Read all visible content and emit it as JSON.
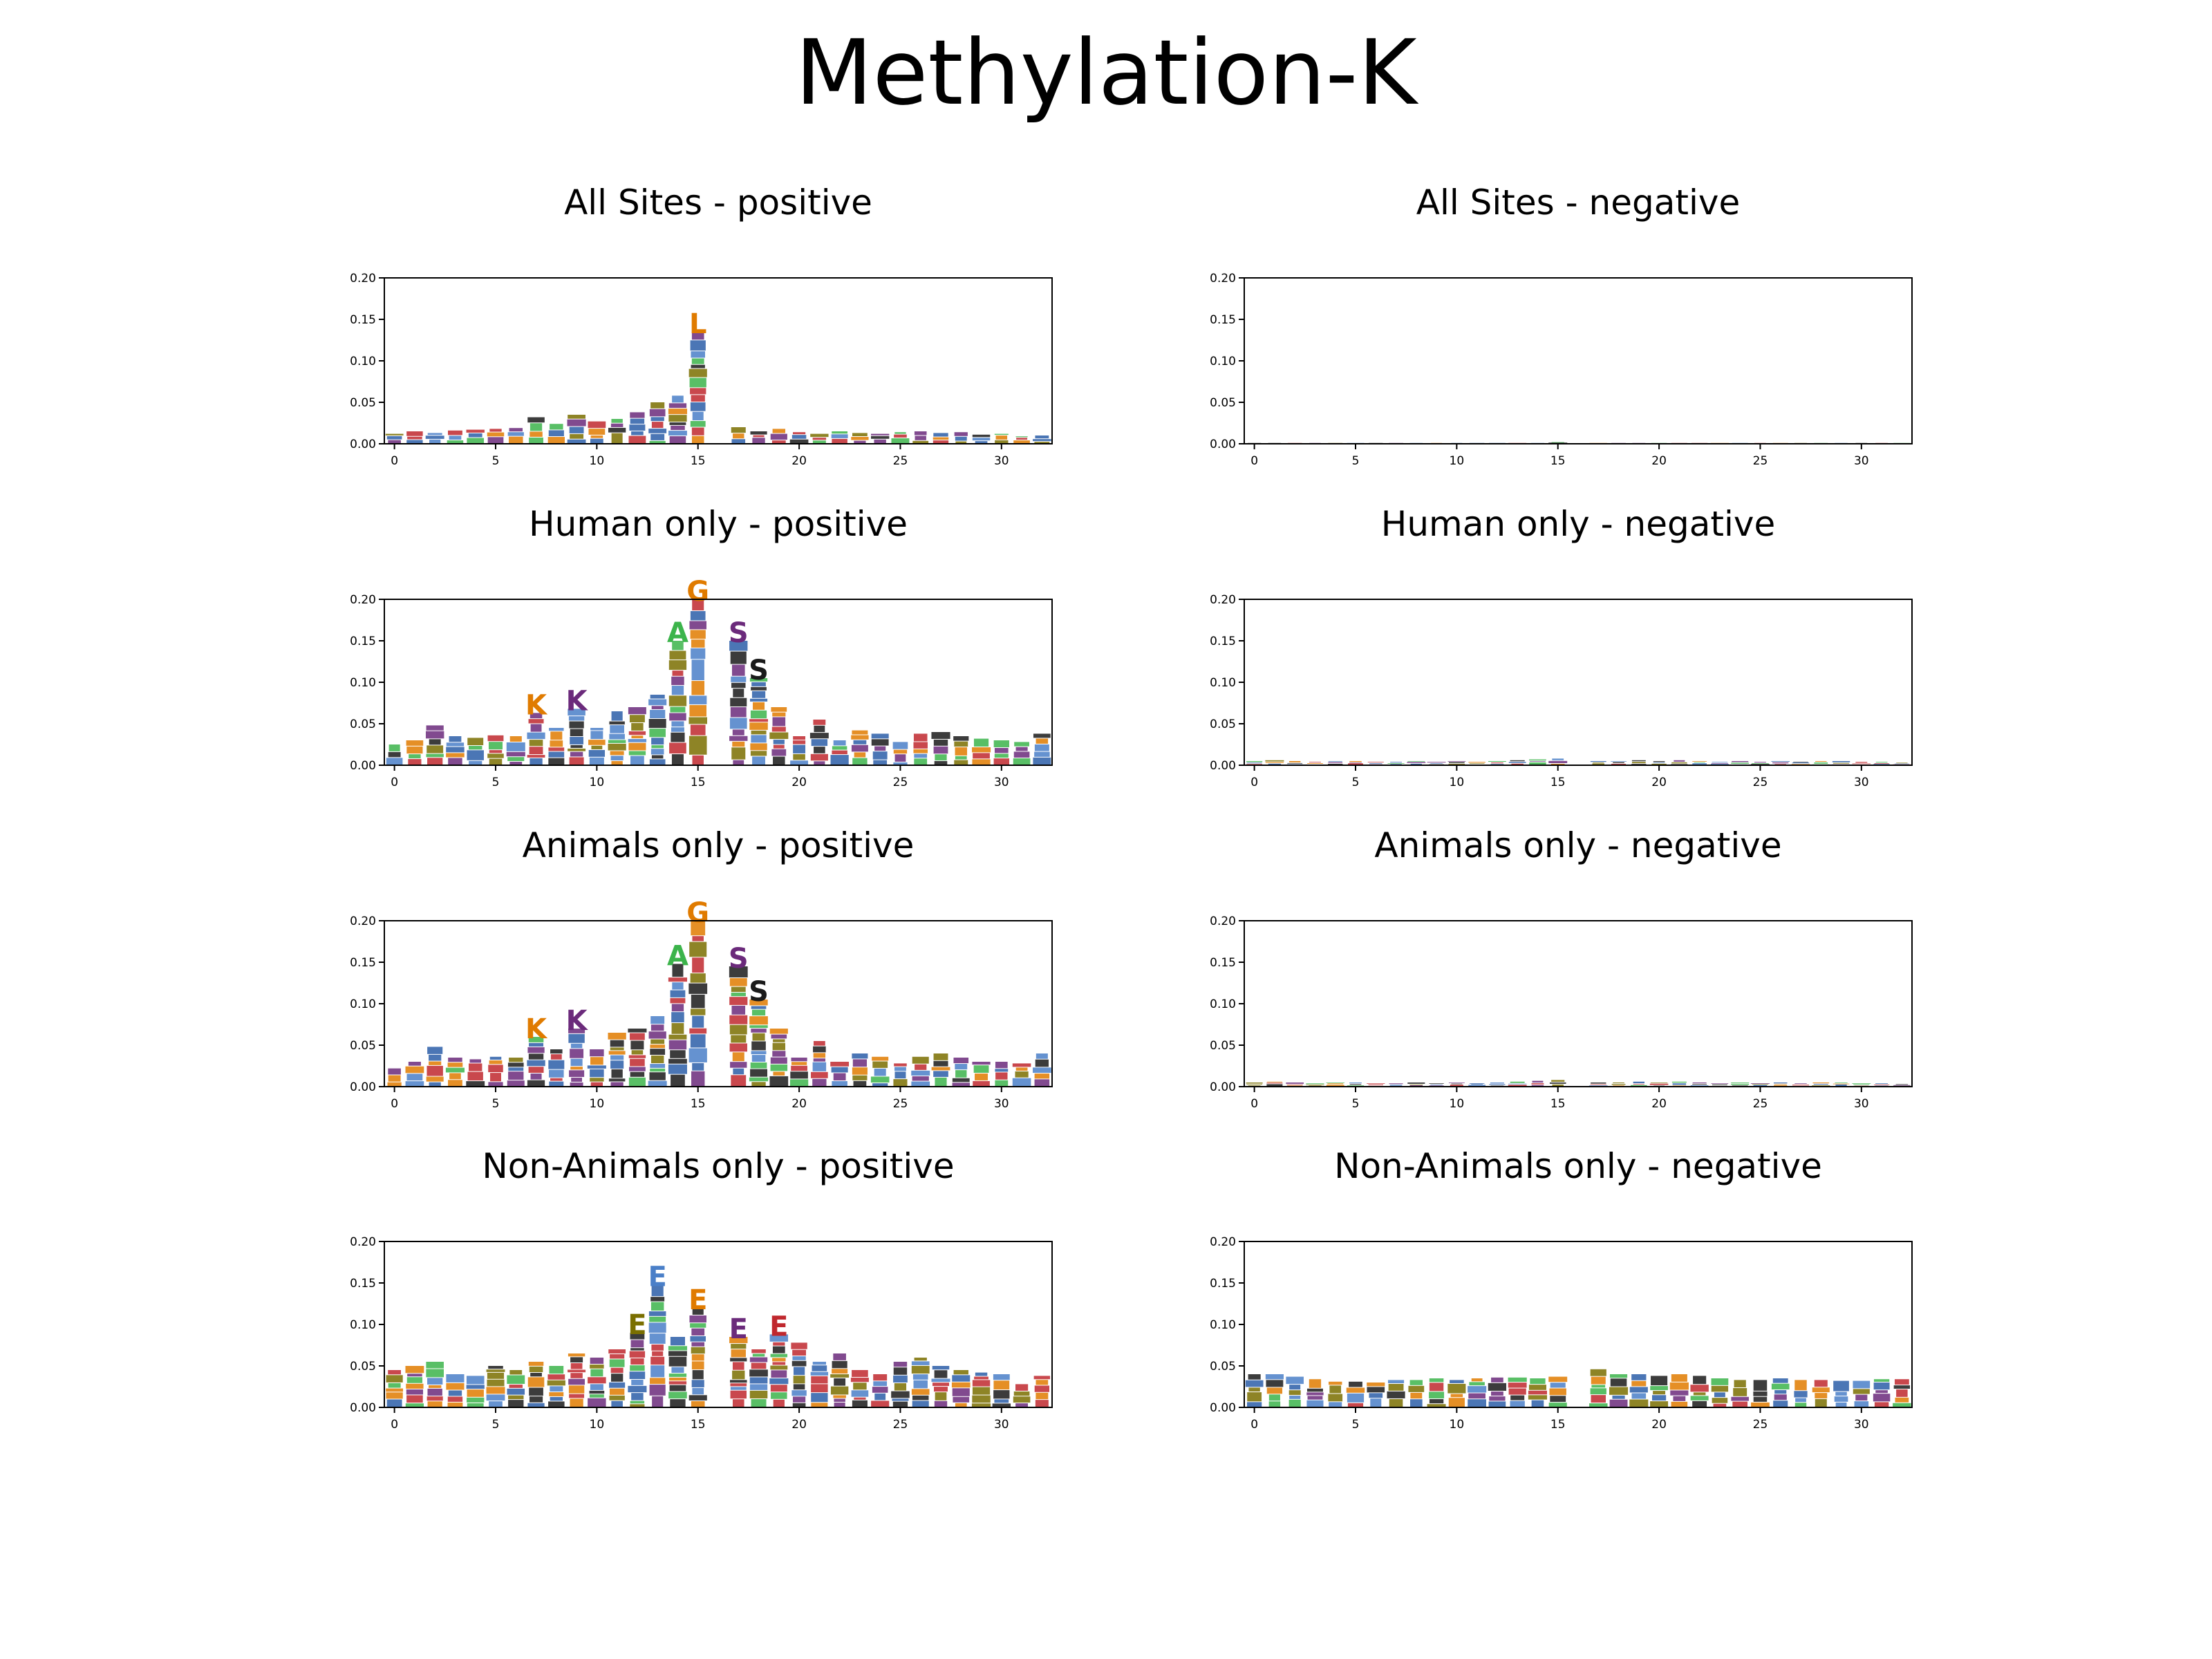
{
  "figure": {
    "title": "Methylation-K"
  },
  "chart_data": [
    {
      "type": "bar",
      "title": "All Sites - positive",
      "ylim": [
        0,
        0.2
      ],
      "xlim": [
        -0.5,
        32.5
      ],
      "yticks": [
        "0.00",
        "0.05",
        "0.10",
        "0.15",
        "0.20"
      ],
      "xticks": [
        "0",
        "5",
        "10",
        "15",
        "20",
        "25",
        "30"
      ],
      "x": [
        0,
        1,
        2,
        3,
        4,
        5,
        6,
        7,
        8,
        9,
        10,
        11,
        12,
        13,
        14,
        15,
        16,
        17,
        18,
        19,
        20,
        21,
        22,
        23,
        24,
        25,
        26,
        27,
        28,
        29,
        30,
        31,
        32
      ],
      "values": [
        0.012,
        0.015,
        0.013,
        0.016,
        0.017,
        0.018,
        0.019,
        0.032,
        0.024,
        0.035,
        0.027,
        0.03,
        0.038,
        0.05,
        0.058,
        0.135,
        0.0,
        0.02,
        0.015,
        0.018,
        0.014,
        0.012,
        0.015,
        0.013,
        0.012,
        0.014,
        0.015,
        0.013,
        0.014,
        0.011,
        0.012,
        0.009,
        0.01
      ],
      "top_letters": [
        "",
        "",
        "",
        "",
        "",
        "",
        "",
        "",
        "",
        "",
        "",
        "",
        "",
        "",
        "",
        "L",
        "",
        "",
        "",
        "",
        "",
        "",
        "",
        "",
        "",
        "",
        "",
        "",
        "",
        "",
        "",
        "",
        ""
      ]
    },
    {
      "type": "bar",
      "title": "All Sites - negative",
      "ylim": [
        0,
        0.2
      ],
      "xlim": [
        -0.5,
        32.5
      ],
      "yticks": [
        "0.00",
        "0.05",
        "0.10",
        "0.15",
        "0.20"
      ],
      "xticks": [
        "0",
        "5",
        "10",
        "15",
        "20",
        "25",
        "30"
      ],
      "x": [
        0,
        1,
        2,
        3,
        4,
        5,
        6,
        7,
        8,
        9,
        10,
        11,
        12,
        13,
        14,
        15,
        16,
        17,
        18,
        19,
        20,
        21,
        22,
        23,
        24,
        25,
        26,
        27,
        28,
        29,
        30,
        31,
        32
      ],
      "values": [
        0.001,
        0.001,
        0.001,
        0.001,
        0.001,
        0.001,
        0.001,
        0.001,
        0.001,
        0.001,
        0.001,
        0.001,
        0.001,
        0.001,
        0.001,
        0.002,
        0.0,
        0.001,
        0.001,
        0.001,
        0.001,
        0.001,
        0.001,
        0.001,
        0.001,
        0.001,
        0.001,
        0.001,
        0.001,
        0.001,
        0.001,
        0.001,
        0.001
      ],
      "top_letters": []
    },
    {
      "type": "bar",
      "title": "Human only - positive",
      "ylim": [
        0,
        0.2
      ],
      "xlim": [
        -0.5,
        32.5
      ],
      "yticks": [
        "0.00",
        "0.05",
        "0.10",
        "0.15",
        "0.20"
      ],
      "xticks": [
        "0",
        "5",
        "10",
        "15",
        "20",
        "25",
        "30"
      ],
      "x": [
        0,
        1,
        2,
        3,
        4,
        5,
        6,
        7,
        8,
        9,
        10,
        11,
        12,
        13,
        14,
        15,
        16,
        17,
        18,
        19,
        20,
        21,
        22,
        23,
        24,
        25,
        26,
        27,
        28,
        29,
        30,
        31,
        32
      ],
      "values": [
        0.025,
        0.03,
        0.048,
        0.035,
        0.033,
        0.036,
        0.035,
        0.063,
        0.045,
        0.068,
        0.045,
        0.065,
        0.07,
        0.085,
        0.15,
        0.2,
        0.0,
        0.15,
        0.105,
        0.07,
        0.035,
        0.055,
        0.03,
        0.042,
        0.038,
        0.028,
        0.038,
        0.04,
        0.035,
        0.032,
        0.03,
        0.028,
        0.038
      ],
      "top_letters": [
        "",
        "",
        "",
        "",
        "",
        "",
        "",
        "K",
        "",
        "K",
        "",
        "",
        "",
        "",
        "A",
        "G",
        "",
        "S",
        "S",
        "",
        "",
        "",
        "",
        "",
        "",
        "",
        "",
        "",
        "",
        "",
        "",
        "",
        ""
      ]
    },
    {
      "type": "bar",
      "title": "Human only - negative",
      "ylim": [
        0,
        0.2
      ],
      "xlim": [
        -0.5,
        32.5
      ],
      "yticks": [
        "0.00",
        "0.05",
        "0.10",
        "0.15",
        "0.20"
      ],
      "xticks": [
        "0",
        "5",
        "10",
        "15",
        "20",
        "25",
        "30"
      ],
      "x": [
        0,
        1,
        2,
        3,
        4,
        5,
        6,
        7,
        8,
        9,
        10,
        11,
        12,
        13,
        14,
        15,
        16,
        17,
        18,
        19,
        20,
        21,
        22,
        23,
        24,
        25,
        26,
        27,
        28,
        29,
        30,
        31,
        32
      ],
      "values": [
        0.005,
        0.006,
        0.005,
        0.004,
        0.005,
        0.005,
        0.004,
        0.004,
        0.005,
        0.004,
        0.005,
        0.004,
        0.005,
        0.006,
        0.007,
        0.008,
        0.0,
        0.005,
        0.005,
        0.006,
        0.005,
        0.006,
        0.005,
        0.004,
        0.005,
        0.004,
        0.005,
        0.004,
        0.005,
        0.005,
        0.004,
        0.004,
        0.003
      ],
      "top_letters": []
    },
    {
      "type": "bar",
      "title": "Animals only - positive",
      "ylim": [
        0,
        0.2
      ],
      "xlim": [
        -0.5,
        32.5
      ],
      "yticks": [
        "0.00",
        "0.05",
        "0.10",
        "0.15",
        "0.20"
      ],
      "xticks": [
        "0",
        "5",
        "10",
        "15",
        "20",
        "25",
        "30"
      ],
      "x": [
        0,
        1,
        2,
        3,
        4,
        5,
        6,
        7,
        8,
        9,
        10,
        11,
        12,
        13,
        14,
        15,
        16,
        17,
        18,
        19,
        20,
        21,
        22,
        23,
        24,
        25,
        26,
        27,
        28,
        29,
        30,
        31,
        32
      ],
      "values": [
        0.022,
        0.03,
        0.048,
        0.035,
        0.033,
        0.036,
        0.035,
        0.06,
        0.045,
        0.07,
        0.045,
        0.065,
        0.07,
        0.085,
        0.148,
        0.2,
        0.0,
        0.145,
        0.105,
        0.07,
        0.035,
        0.055,
        0.03,
        0.04,
        0.036,
        0.028,
        0.036,
        0.04,
        0.035,
        0.03,
        0.03,
        0.028,
        0.04
      ],
      "top_letters": [
        "",
        "",
        "",
        "",
        "",
        "",
        "",
        "K",
        "",
        "K",
        "",
        "",
        "",
        "",
        "A",
        "G",
        "",
        "S",
        "S",
        "",
        "",
        "",
        "",
        "",
        "",
        "",
        "",
        "",
        "",
        "",
        "",
        "",
        ""
      ]
    },
    {
      "type": "bar",
      "title": "Animals only - negative",
      "ylim": [
        0,
        0.2
      ],
      "xlim": [
        -0.5,
        32.5
      ],
      "yticks": [
        "0.00",
        "0.05",
        "0.10",
        "0.15",
        "0.20"
      ],
      "xticks": [
        "0",
        "5",
        "10",
        "15",
        "20",
        "25",
        "30"
      ],
      "x": [
        0,
        1,
        2,
        3,
        4,
        5,
        6,
        7,
        8,
        9,
        10,
        11,
        12,
        13,
        14,
        15,
        16,
        17,
        18,
        19,
        20,
        21,
        22,
        23,
        24,
        25,
        26,
        27,
        28,
        29,
        30,
        31,
        32
      ],
      "values": [
        0.005,
        0.006,
        0.005,
        0.004,
        0.005,
        0.005,
        0.004,
        0.004,
        0.005,
        0.004,
        0.005,
        0.004,
        0.005,
        0.006,
        0.007,
        0.008,
        0.0,
        0.005,
        0.005,
        0.006,
        0.005,
        0.006,
        0.005,
        0.004,
        0.005,
        0.004,
        0.005,
        0.004,
        0.005,
        0.005,
        0.004,
        0.004,
        0.003
      ],
      "top_letters": []
    },
    {
      "type": "bar",
      "title": "Non-Animals only - positive",
      "ylim": [
        0,
        0.2
      ],
      "xlim": [
        -0.5,
        32.5
      ],
      "yticks": [
        "0.00",
        "0.05",
        "0.10",
        "0.15",
        "0.20"
      ],
      "xticks": [
        "0",
        "5",
        "10",
        "15",
        "20",
        "25",
        "30"
      ],
      "x": [
        0,
        1,
        2,
        3,
        4,
        5,
        6,
        7,
        8,
        9,
        10,
        11,
        12,
        13,
        14,
        15,
        16,
        17,
        18,
        19,
        20,
        21,
        22,
        23,
        24,
        25,
        26,
        27,
        28,
        29,
        30,
        31,
        32
      ],
      "values": [
        0.045,
        0.05,
        0.055,
        0.04,
        0.038,
        0.05,
        0.045,
        0.055,
        0.05,
        0.065,
        0.06,
        0.07,
        0.09,
        0.148,
        0.085,
        0.12,
        0.0,
        0.085,
        0.07,
        0.088,
        0.078,
        0.055,
        0.065,
        0.045,
        0.04,
        0.055,
        0.06,
        0.05,
        0.045,
        0.042,
        0.04,
        0.028,
        0.038
      ],
      "top_letters": [
        "",
        "",
        "",
        "",
        "",
        "",
        "",
        "",
        "",
        "",
        "",
        "",
        "E",
        "E",
        "",
        "E",
        "",
        "E",
        "",
        "E",
        "",
        "",
        "",
        "",
        "",
        "",
        "",
        "",
        "",
        "",
        "",
        "",
        ""
      ]
    },
    {
      "type": "bar",
      "title": "Non-Animals only - negative",
      "ylim": [
        0,
        0.2
      ],
      "xlim": [
        -0.5,
        32.5
      ],
      "yticks": [
        "0.00",
        "0.05",
        "0.10",
        "0.15",
        "0.20"
      ],
      "xticks": [
        "0",
        "5",
        "10",
        "15",
        "20",
        "25",
        "30"
      ],
      "x": [
        0,
        1,
        2,
        3,
        4,
        5,
        6,
        7,
        8,
        9,
        10,
        11,
        12,
        13,
        14,
        15,
        16,
        17,
        18,
        19,
        20,
        21,
        22,
        23,
        24,
        25,
        26,
        27,
        28,
        29,
        30,
        31,
        32
      ],
      "values": [
        0.04,
        0.04,
        0.037,
        0.034,
        0.031,
        0.031,
        0.03,
        0.033,
        0.033,
        0.035,
        0.033,
        0.035,
        0.036,
        0.036,
        0.035,
        0.037,
        0.0,
        0.046,
        0.04,
        0.04,
        0.038,
        0.04,
        0.038,
        0.035,
        0.033,
        0.033,
        0.035,
        0.033,
        0.033,
        0.032,
        0.032,
        0.034,
        0.034
      ],
      "top_letters": []
    }
  ],
  "colors": {
    "logo_palette": [
      "#2b5ea8",
      "#c0282e",
      "#3cb44b",
      "#6b2a7b",
      "#7a6f00",
      "#e07b00",
      "#1a1a1a",
      "#4a7fc8"
    ]
  }
}
